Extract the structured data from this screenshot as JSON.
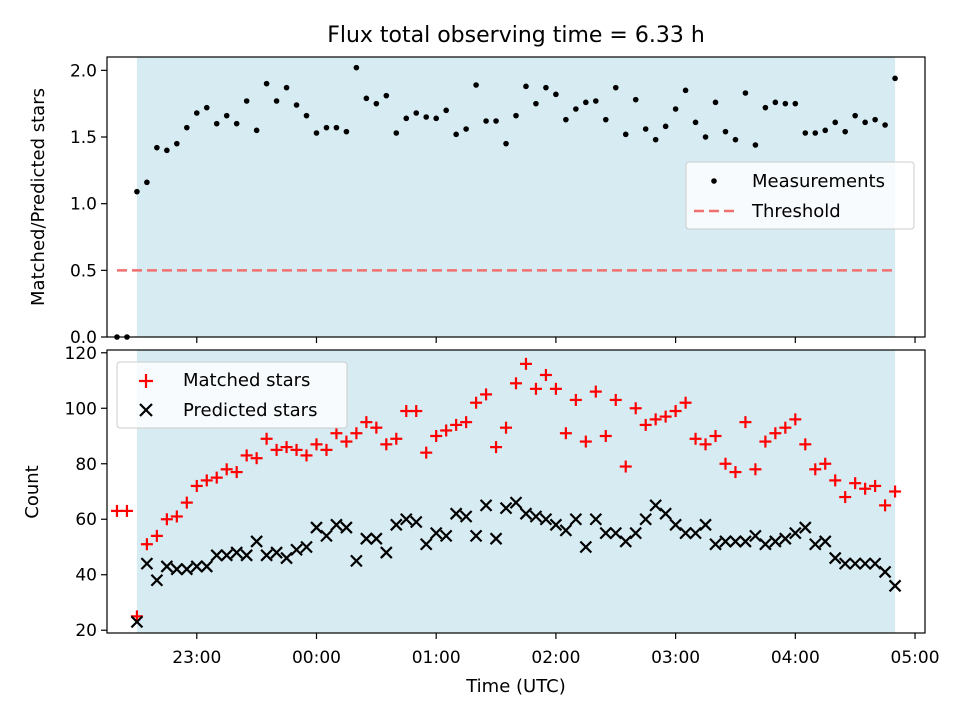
{
  "chart_data": [
    {
      "type": "scatter",
      "title": "Flux total observing time = 6.33 h",
      "ylabel": "Matched/Predicted stars",
      "xlabel": "",
      "xlim": [
        "22:15",
        "05:05"
      ],
      "ylim": [
        0,
        2.1
      ],
      "y_ticks": [
        0,
        0.5,
        1.0,
        1.5,
        2.0
      ],
      "y_tick_labels": [
        "0.0",
        "0.5",
        "1.0",
        "1.5",
        "2.0"
      ],
      "observing_span": [
        "22:30",
        "04:50"
      ],
      "legend": {
        "position": "center-right",
        "entries": [
          "Measurements",
          "Threshold"
        ]
      },
      "threshold": {
        "name": "Threshold",
        "y": 0.5,
        "x_range": [
          "22:20",
          "04:50"
        ],
        "color": "#f07070"
      },
      "series": [
        {
          "name": "Measurements",
          "color": "#000000",
          "x": [
            "22:20",
            "22:25",
            "22:30",
            "22:35",
            "22:40",
            "22:45",
            "22:50",
            "22:55",
            "23:00",
            "23:05",
            "23:10",
            "23:15",
            "23:20",
            "23:25",
            "23:30",
            "23:35",
            "23:40",
            "23:45",
            "23:50",
            "23:55",
            "00:00",
            "00:05",
            "00:10",
            "00:15",
            "00:20",
            "00:25",
            "00:30",
            "00:35",
            "00:40",
            "00:45",
            "00:50",
            "00:55",
            "01:00",
            "01:05",
            "01:10",
            "01:15",
            "01:20",
            "01:25",
            "01:30",
            "01:35",
            "01:40",
            "01:45",
            "01:50",
            "01:55",
            "02:00",
            "02:05",
            "02:10",
            "02:15",
            "02:20",
            "02:25",
            "02:30",
            "02:35",
            "02:40",
            "02:45",
            "02:50",
            "02:55",
            "03:00",
            "03:05",
            "03:10",
            "03:15",
            "03:20",
            "03:25",
            "03:30",
            "03:35",
            "03:40",
            "03:45",
            "03:50",
            "03:55",
            "04:00",
            "04:05",
            "04:10",
            "04:15",
            "04:20",
            "04:25",
            "04:30",
            "04:35",
            "04:40",
            "04:45",
            "04:50"
          ],
          "y": [
            0.0,
            0.0,
            1.09,
            1.16,
            1.42,
            1.4,
            1.45,
            1.57,
            1.68,
            1.72,
            1.6,
            1.66,
            1.6,
            1.77,
            1.55,
            1.9,
            1.77,
            1.87,
            1.74,
            1.66,
            1.53,
            1.57,
            1.57,
            1.54,
            2.02,
            1.79,
            1.75,
            1.81,
            1.53,
            1.64,
            1.68,
            1.65,
            1.64,
            1.7,
            1.52,
            1.56,
            1.89,
            1.62,
            1.62,
            1.45,
            1.66,
            1.88,
            1.75,
            1.87,
            1.82,
            1.63,
            1.71,
            1.76,
            1.77,
            1.63,
            1.87,
            1.52,
            1.78,
            1.56,
            1.48,
            1.58,
            1.71,
            1.85,
            1.61,
            1.5,
            1.76,
            1.54,
            1.48,
            1.83,
            1.44,
            1.72,
            1.76,
            1.75,
            1.75,
            1.53,
            1.53,
            1.55,
            1.61,
            1.54,
            1.66,
            1.61,
            1.63,
            1.59,
            1.94
          ]
        }
      ]
    },
    {
      "type": "scatter",
      "title": "",
      "ylabel": "Count",
      "xlabel": "Time (UTC)",
      "xlim": [
        "22:15",
        "05:05"
      ],
      "ylim": [
        19,
        121
      ],
      "y_ticks": [
        20,
        40,
        60,
        80,
        100,
        120
      ],
      "x_ticks": [
        "23:00",
        "00:00",
        "01:00",
        "02:00",
        "03:00",
        "04:00",
        "05:00"
      ],
      "observing_span": [
        "22:30",
        "04:50"
      ],
      "legend": {
        "position": "top-left",
        "entries": [
          "Matched stars",
          "Predicted stars"
        ]
      },
      "series": [
        {
          "name": "Matched stars",
          "marker": "+",
          "color": "#ff0000",
          "x": [
            "22:20",
            "22:25",
            "22:30",
            "22:35",
            "22:40",
            "22:45",
            "22:50",
            "22:55",
            "23:00",
            "23:05",
            "23:10",
            "23:15",
            "23:20",
            "23:25",
            "23:30",
            "23:35",
            "23:40",
            "23:45",
            "23:50",
            "23:55",
            "00:00",
            "00:05",
            "00:10",
            "00:15",
            "00:20",
            "00:25",
            "00:30",
            "00:35",
            "00:40",
            "00:45",
            "00:50",
            "00:55",
            "01:00",
            "01:05",
            "01:10",
            "01:15",
            "01:20",
            "01:25",
            "01:30",
            "01:35",
            "01:40",
            "01:45",
            "01:50",
            "01:55",
            "02:00",
            "02:05",
            "02:10",
            "02:15",
            "02:20",
            "02:25",
            "02:30",
            "02:35",
            "02:40",
            "02:45",
            "02:50",
            "02:55",
            "03:00",
            "03:05",
            "03:10",
            "03:15",
            "03:20",
            "03:25",
            "03:30",
            "03:35",
            "03:40",
            "03:45",
            "03:50",
            "03:55",
            "04:00",
            "04:05",
            "04:10",
            "04:15",
            "04:20",
            "04:25",
            "04:30",
            "04:35",
            "04:40",
            "04:45",
            "04:50"
          ],
          "y": [
            63,
            63,
            25,
            51,
            54,
            60,
            61,
            66,
            72,
            74,
            75,
            78,
            77,
            83,
            82,
            89,
            85,
            86,
            85,
            83,
            87,
            85,
            91,
            88,
            91,
            95,
            93,
            87,
            89,
            99,
            99,
            84,
            90,
            92,
            94,
            95,
            102,
            105,
            86,
            93,
            109,
            116,
            107,
            112,
            107,
            91,
            103,
            88,
            106,
            90,
            103,
            79,
            100,
            94,
            96,
            97,
            99,
            102,
            89,
            87,
            90,
            80,
            77,
            95,
            78,
            88,
            91,
            93,
            96,
            87,
            78,
            80,
            74,
            68,
            73,
            71,
            72,
            65,
            70
          ]
        },
        {
          "name": "Predicted stars",
          "marker": "x",
          "color": "#000000",
          "x": [
            "22:30",
            "22:35",
            "22:40",
            "22:45",
            "22:50",
            "22:55",
            "23:00",
            "23:05",
            "23:10",
            "23:15",
            "23:20",
            "23:25",
            "23:30",
            "23:35",
            "23:40",
            "23:45",
            "23:50",
            "23:55",
            "00:00",
            "00:05",
            "00:10",
            "00:15",
            "00:20",
            "00:25",
            "00:30",
            "00:35",
            "00:40",
            "00:45",
            "00:50",
            "00:55",
            "01:00",
            "01:05",
            "01:10",
            "01:15",
            "01:20",
            "01:25",
            "01:30",
            "01:35",
            "01:40",
            "01:45",
            "01:50",
            "01:55",
            "02:00",
            "02:05",
            "02:10",
            "02:15",
            "02:20",
            "02:25",
            "02:30",
            "02:35",
            "02:40",
            "02:45",
            "02:50",
            "02:55",
            "03:00",
            "03:05",
            "03:10",
            "03:15",
            "03:20",
            "03:25",
            "03:30",
            "03:35",
            "03:40",
            "03:45",
            "03:50",
            "03:55",
            "04:00",
            "04:05",
            "04:10",
            "04:15",
            "04:20",
            "04:25",
            "04:30",
            "04:35",
            "04:40",
            "04:45",
            "04:50"
          ],
          "y": [
            23,
            44,
            38,
            43,
            42,
            42,
            43,
            43,
            47,
            47,
            48,
            47,
            52,
            47,
            48,
            46,
            49,
            50,
            57,
            54,
            58,
            57,
            45,
            53,
            53,
            48,
            58,
            60,
            59,
            51,
            55,
            54,
            62,
            61,
            54,
            65,
            53,
            64,
            66,
            62,
            61,
            60,
            58,
            56,
            60,
            50,
            60,
            55,
            55,
            52,
            55,
            60,
            65,
            62,
            58,
            55,
            55,
            58,
            51,
            52,
            52,
            52,
            54,
            51,
            52,
            53,
            55,
            57,
            51,
            52,
            46,
            44,
            44,
            44,
            44,
            41,
            36
          ]
        }
      ]
    }
  ]
}
